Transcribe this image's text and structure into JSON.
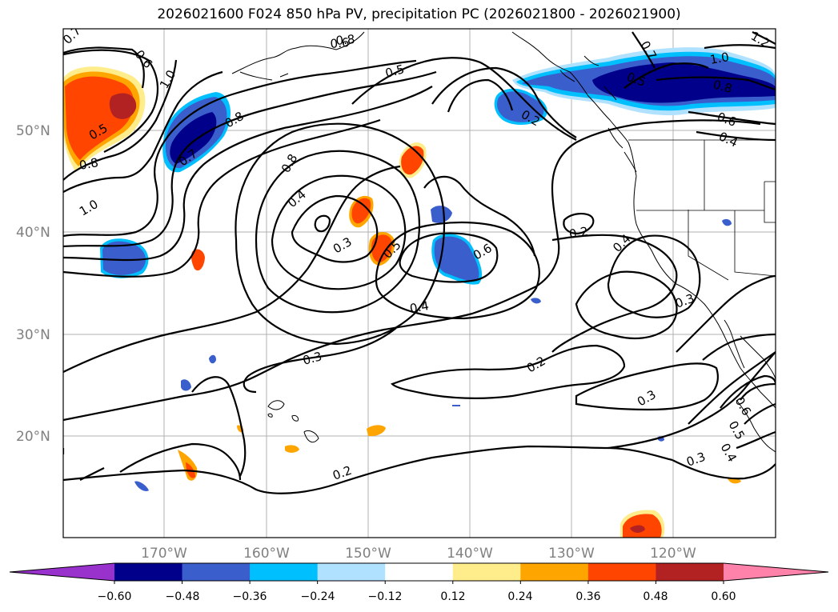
{
  "title": "2026021600 F024 850 hPa PV, precipitation PC (2026021800 - 2026021900)",
  "lat_labels": [
    "50°N",
    "40°N",
    "30°N",
    "20°N"
  ],
  "lon_labels": [
    "170°W",
    "160°W",
    "150°W",
    "140°W",
    "130°W",
    "120°W"
  ],
  "colorbar": {
    "colors": [
      "#9932cc",
      "#00008b",
      "#3a5fcd",
      "#00bfff",
      "#b0e2ff",
      "#ffffff",
      "#ffec8b",
      "#ffa500",
      "#ff4500",
      "#b22222",
      "#ff82ab"
    ],
    "ticks": [
      "−0.60",
      "−0.48",
      "−0.36",
      "−0.24",
      "−0.12",
      "0.12",
      "0.24",
      "0.36",
      "0.48",
      "0.60"
    ]
  },
  "contour_labels": [
    {
      "text": "0.7"
    },
    {
      "text": "0.6"
    },
    {
      "text": "1.0"
    },
    {
      "text": "0.5"
    },
    {
      "text": "0.8"
    },
    {
      "text": "1.0"
    },
    {
      "text": "0.7"
    },
    {
      "text": "0.8"
    },
    {
      "text": "0.8"
    },
    {
      "text": "0.4"
    },
    {
      "text": "0.3"
    },
    {
      "text": "0.5"
    },
    {
      "text": "0.6"
    },
    {
      "text": "0.4"
    },
    {
      "text": "0.3"
    },
    {
      "text": "0.5"
    },
    {
      "text": "0.6"
    },
    {
      "text": "0.2"
    },
    {
      "text": "0.7"
    },
    {
      "text": "1.0"
    },
    {
      "text": "0.5"
    },
    {
      "text": "0.8"
    },
    {
      "text": "0.6"
    },
    {
      "text": "0.4"
    },
    {
      "text": "1.2"
    },
    {
      "text": "0.2"
    },
    {
      "text": "0.4"
    },
    {
      "text": "0.3"
    },
    {
      "text": "0.2"
    },
    {
      "text": "0.3"
    },
    {
      "text": "0.3"
    },
    {
      "text": "0.6"
    },
    {
      "text": "0.5"
    },
    {
      "text": "0.4"
    },
    {
      "text": "0.2"
    },
    {
      "text": "0.8"
    }
  ]
}
